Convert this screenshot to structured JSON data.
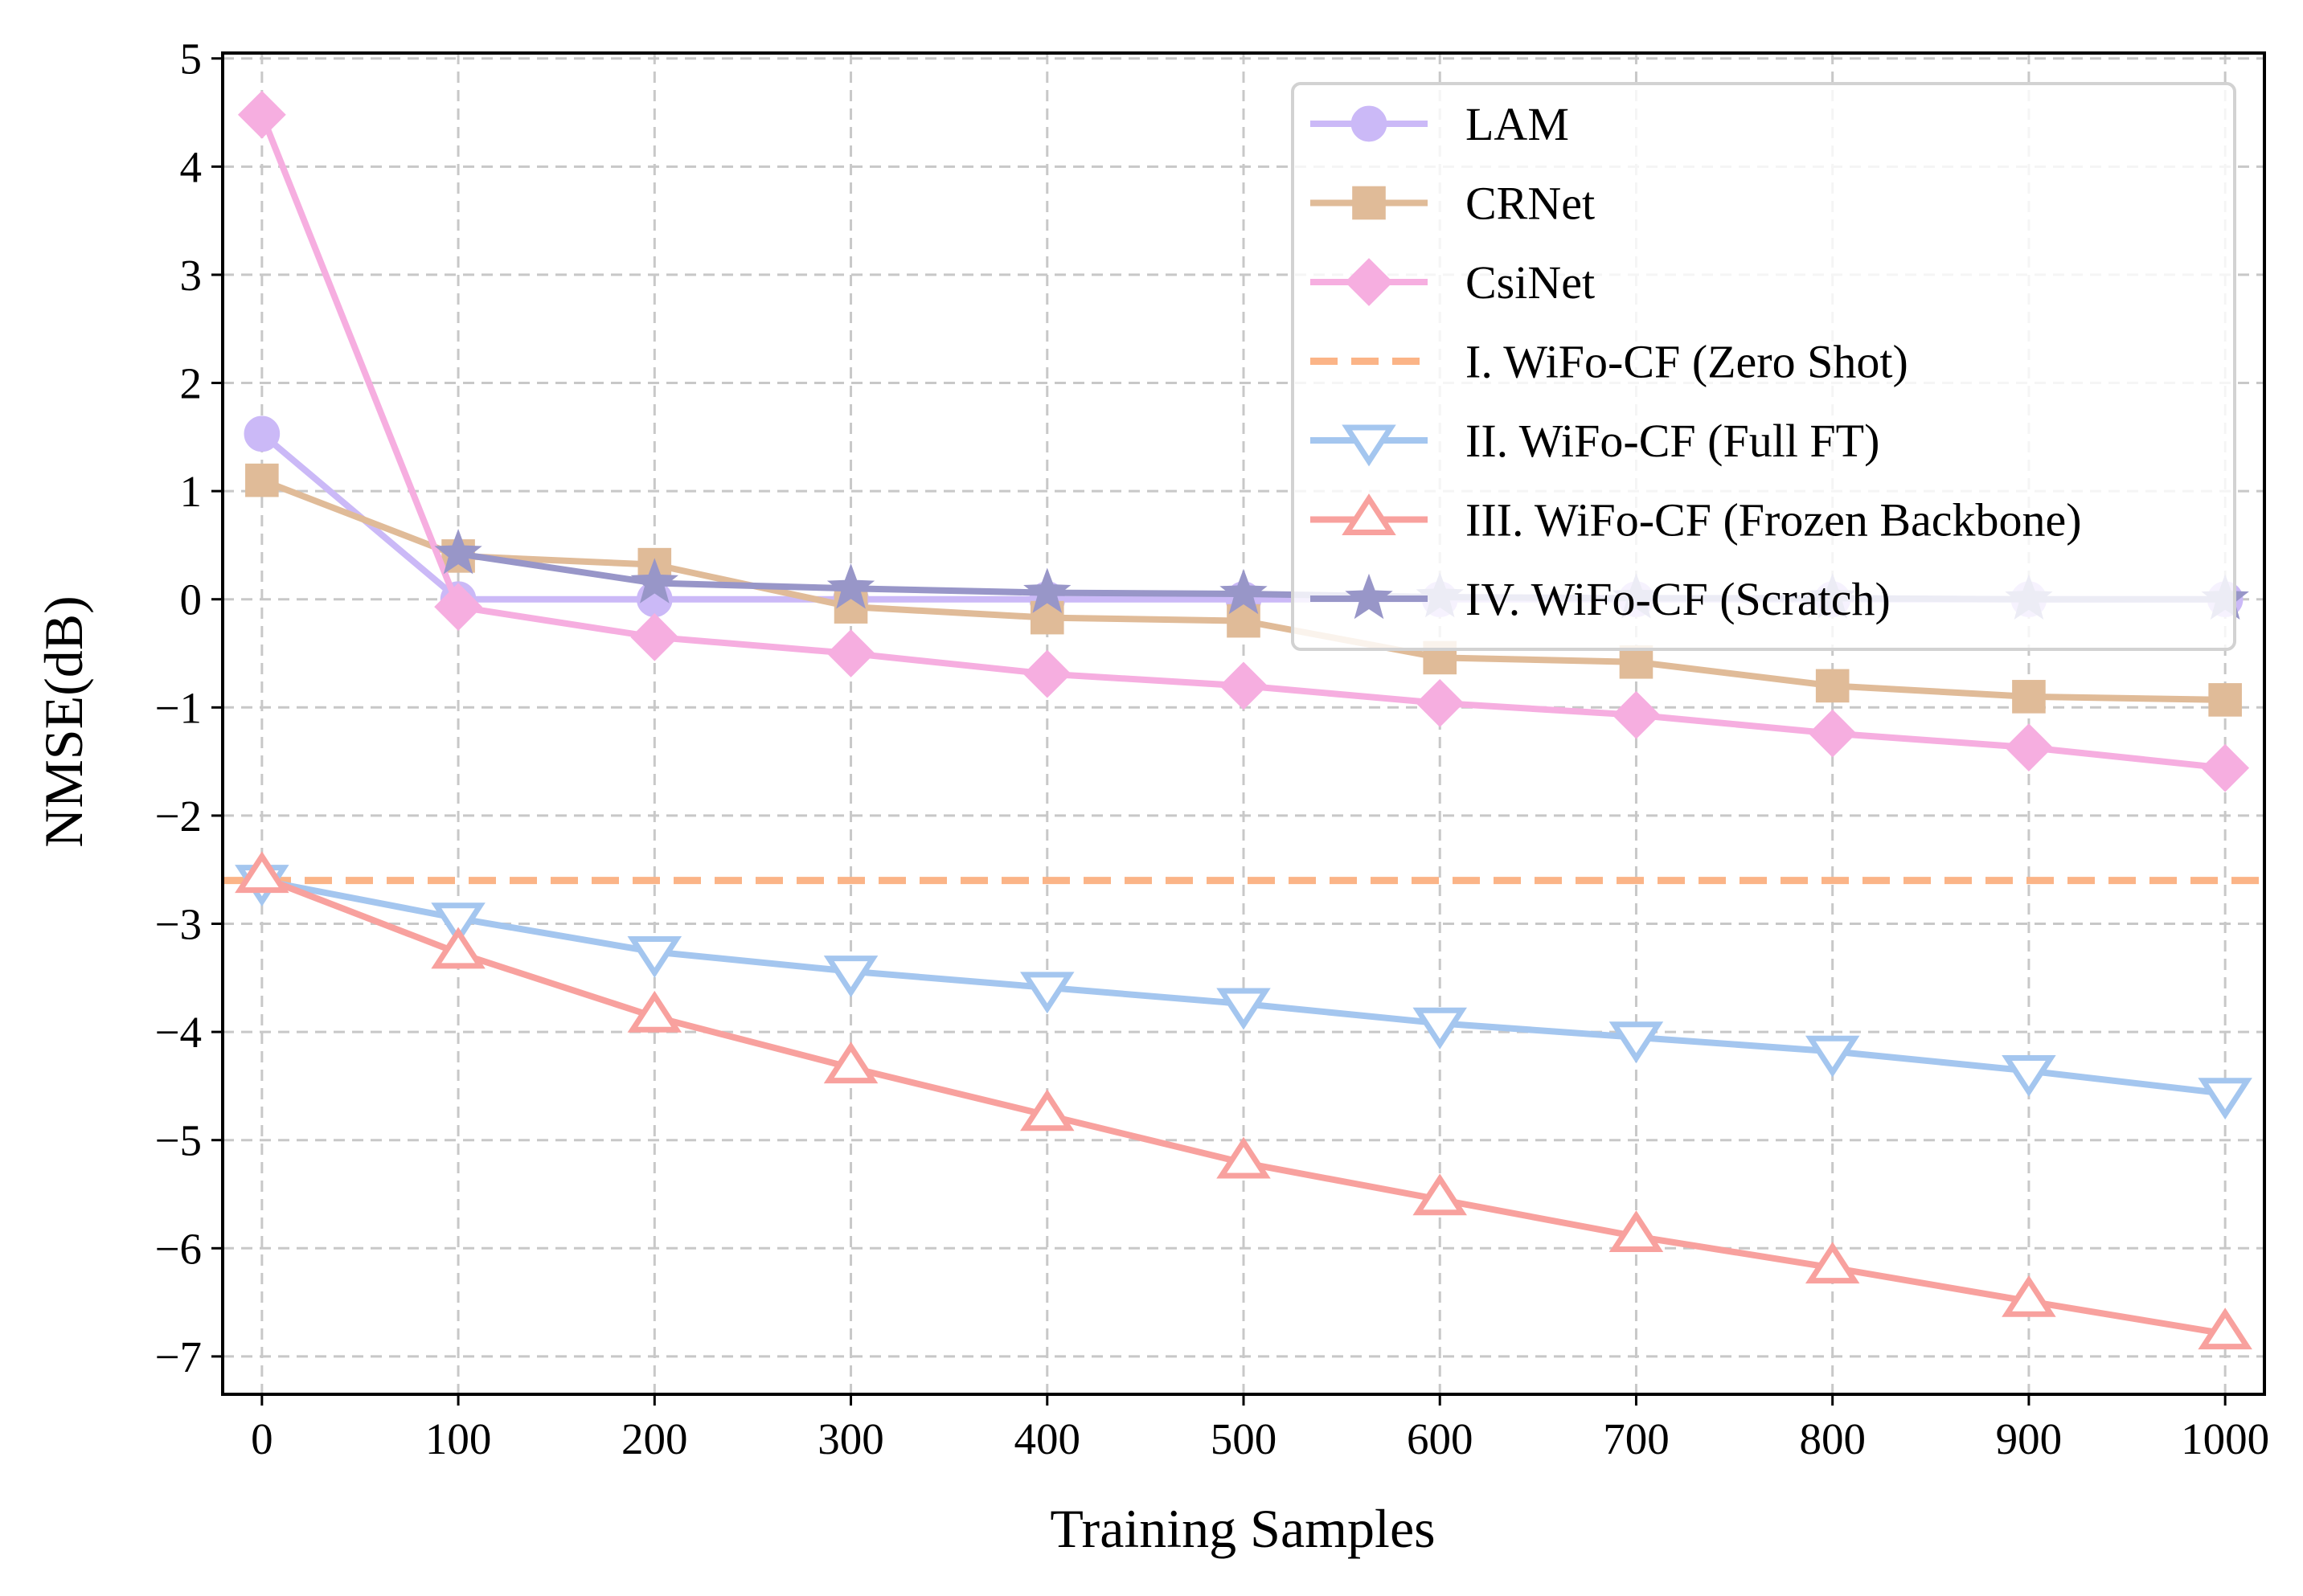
{
  "chart_data": {
    "type": "line",
    "title": "",
    "xlabel": "Training Samples",
    "ylabel": "NMSE(dB)",
    "x": [
      0,
      100,
      200,
      300,
      400,
      500,
      600,
      700,
      800,
      900,
      1000
    ],
    "xlim": [
      -20,
      1020
    ],
    "ylim": [
      -7.35,
      5.05
    ],
    "xticks": [
      0,
      100,
      200,
      300,
      400,
      500,
      600,
      700,
      800,
      900,
      1000
    ],
    "xtick_labels": [
      "0",
      "100",
      "200",
      "300",
      "400",
      "500",
      "600",
      "700",
      "800",
      "900",
      "1000"
    ],
    "yticks": [
      5,
      4,
      3,
      2,
      1,
      0,
      -1,
      -2,
      -3,
      -4,
      -5,
      -6,
      -7
    ],
    "ytick_labels": [
      "5",
      "4",
      "3",
      "2",
      "1",
      "0",
      "−1",
      "−2",
      "−3",
      "−4",
      "−5",
      "−6",
      "−7"
    ],
    "grid": true,
    "legend_position": "top-right",
    "series": [
      {
        "name": "LAM",
        "color": "#cbb9f7",
        "marker": "circle",
        "style": "solid",
        "values": [
          1.53,
          0.0,
          0.0,
          0.0,
          0.0,
          0.0,
          0.0,
          0.0,
          0.0,
          0.0,
          0.0
        ]
      },
      {
        "name": "CRNet",
        "color": "#e0bb98",
        "marker": "square",
        "style": "solid",
        "values": [
          1.1,
          0.4,
          0.32,
          -0.07,
          -0.17,
          -0.2,
          -0.54,
          -0.58,
          -0.8,
          -0.9,
          -0.93
        ]
      },
      {
        "name": "CsiNet",
        "color": "#f6aee0",
        "marker": "diamond",
        "style": "solid",
        "values": [
          4.48,
          -0.07,
          -0.35,
          -0.5,
          -0.69,
          -0.8,
          -0.96,
          -1.07,
          -1.24,
          -1.37,
          -1.56
        ]
      },
      {
        "name": "I. WiFo-CF (Zero Shot)",
        "color": "#fbb487",
        "marker": "none",
        "style": "dashed",
        "constant": -2.6,
        "values": [
          -2.6,
          -2.6,
          -2.6,
          -2.6,
          -2.6,
          -2.6,
          -2.6,
          -2.6,
          -2.6,
          -2.6,
          -2.6
        ]
      },
      {
        "name": "II. WiFo-CF (Full FT)",
        "color": "#a4c6ef",
        "marker": "triangle-down",
        "style": "solid",
        "values": [
          -2.6,
          -2.95,
          -3.26,
          -3.44,
          -3.59,
          -3.74,
          -3.92,
          -4.05,
          -4.18,
          -4.36,
          -4.57
        ]
      },
      {
        "name": "III. WiFo-CF (Frozen Backbone)",
        "color": "#f8a19e",
        "marker": "triangle-up",
        "style": "solid",
        "values": [
          -2.57,
          -3.27,
          -3.86,
          -4.33,
          -4.77,
          -5.21,
          -5.55,
          -5.89,
          -6.18,
          -6.49,
          -6.79
        ]
      },
      {
        "name": "IV. WiFo-CF (Scratch)",
        "color": "#9896c8",
        "marker": "star",
        "style": "solid",
        "values": [
          null,
          0.42,
          0.15,
          0.1,
          0.06,
          0.05,
          0.02,
          0.01,
          0.01,
          0.0,
          0.0
        ]
      }
    ]
  }
}
